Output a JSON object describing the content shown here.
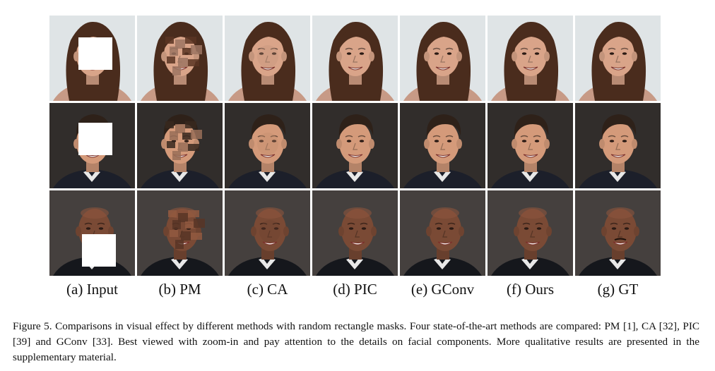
{
  "figure": {
    "columns": [
      {
        "method": "input",
        "label": "(a) Input"
      },
      {
        "method": "pm",
        "label": "(b) PM"
      },
      {
        "method": "ca",
        "label": "(c) CA"
      },
      {
        "method": "pic",
        "label": "(d) PIC"
      },
      {
        "method": "gconv",
        "label": "(e) GConv"
      },
      {
        "method": "ours",
        "label": "(f) Ours"
      },
      {
        "method": "gt",
        "label": "(g) GT"
      }
    ],
    "rows": [
      {
        "subject": "woman",
        "bg": "#dfe4e6",
        "skin": "#d9a489",
        "hair": "#4a2c1d",
        "clothes": "#c79a86"
      },
      {
        "subject": "man",
        "bg": "#3a3533",
        "skin": "#d49a7a",
        "hair": "#2e2119",
        "clothes": "#1c1f2a"
      },
      {
        "subject": "bald-man",
        "bg": "#45403e",
        "skin": "#7a4a35",
        "hair": "none",
        "clothes": "#15171c"
      }
    ]
  },
  "caption": {
    "head": "Figure 5.",
    "text": "Comparisons in visual effect by different methods with random rectangle masks. Four state-of-the-art methods are compared: PM [1], CA [32], PIC [39] and GConv [33]. Best viewed with zoom-in and pay attention to the details on facial components. More qualitative results are presented in the supplementary material."
  }
}
